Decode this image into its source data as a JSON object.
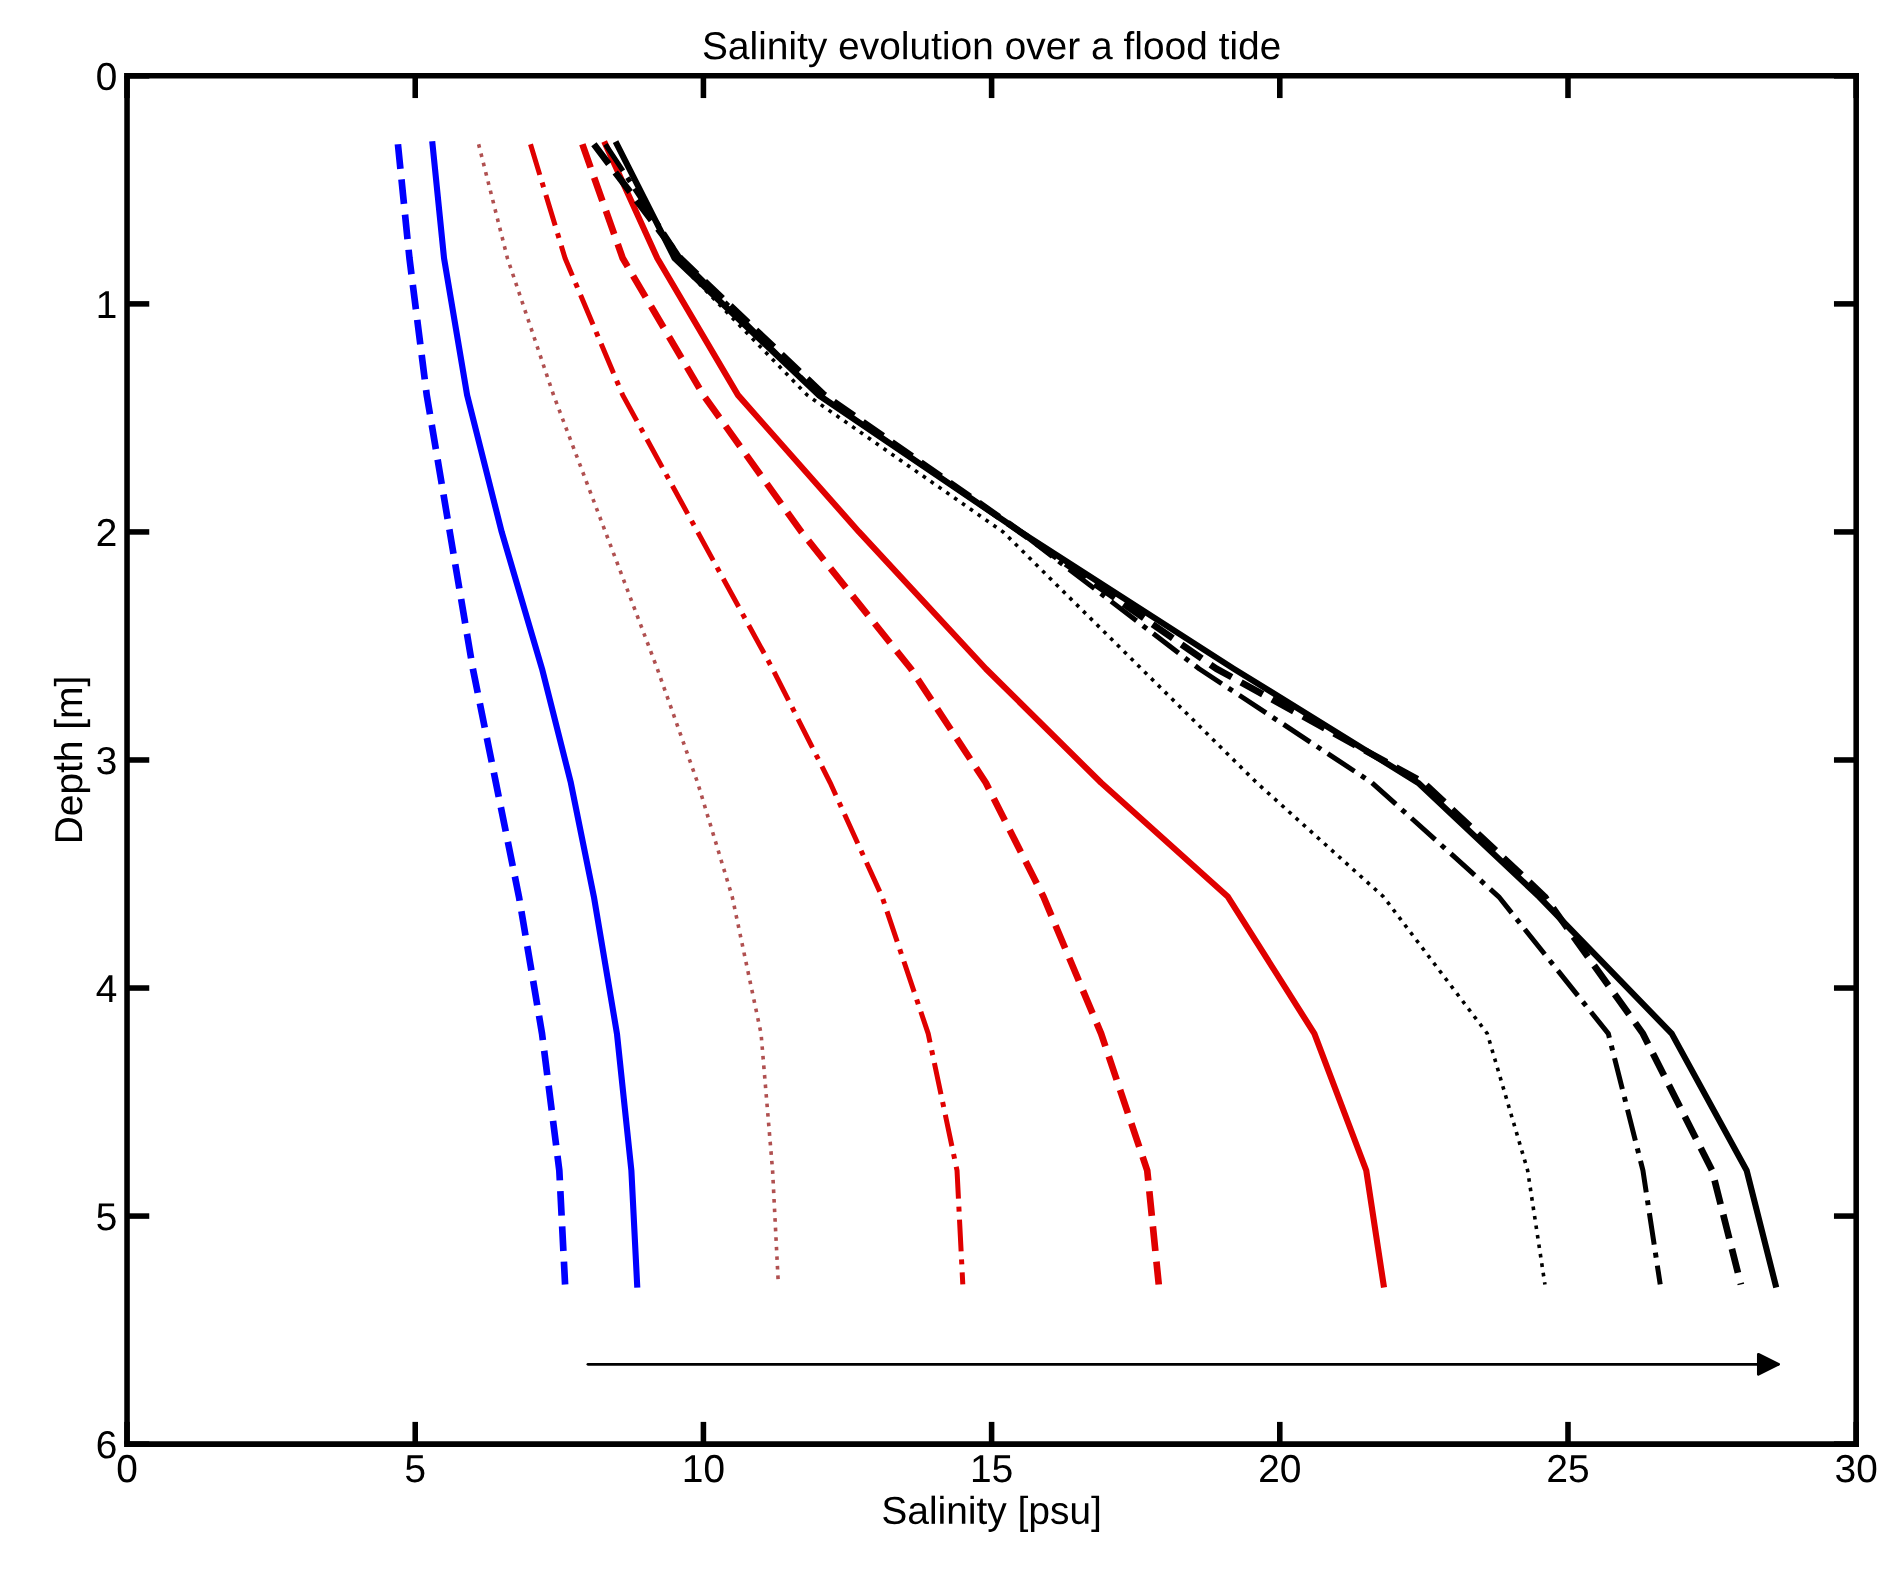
{
  "chart_data": {
    "type": "line",
    "title": "Salinity evolution over a flood tide",
    "xlabel": "Salinity [psu]",
    "ylabel": "Depth [m]",
    "xlim": [
      0,
      30
    ],
    "xticks": [
      0,
      5,
      10,
      15,
      20,
      25,
      30
    ],
    "ylim": [
      6,
      0
    ],
    "yticks": [
      0,
      1,
      2,
      3,
      4,
      5,
      6
    ],
    "grid": false,
    "legend": false,
    "marker": "none",
    "series": [
      {
        "color": "#0000ff",
        "line_style": "dashed",
        "x": [
          4.7,
          4.9,
          5.2,
          5.6,
          6.0,
          6.4,
          6.8,
          7.2,
          7.5,
          7.6
        ],
        "values": [
          0.3,
          0.8,
          1.4,
          2.0,
          2.6,
          3.1,
          3.6,
          4.2,
          4.8,
          5.3
        ]
      },
      {
        "color": "#0000ff",
        "line_style": "solid",
        "x": [
          5.3,
          5.5,
          5.9,
          6.5,
          7.2,
          7.7,
          8.1,
          8.5,
          8.75,
          8.85
        ],
        "values": [
          0.3,
          0.8,
          1.4,
          2.0,
          2.6,
          3.1,
          3.6,
          4.2,
          4.8,
          5.3
        ]
      },
      {
        "color": "#b05050",
        "line_style": "dotted",
        "x": [
          6.1,
          6.6,
          7.4,
          8.3,
          9.2,
          9.9,
          10.5,
          11.0,
          11.2,
          11.3
        ],
        "values": [
          0.3,
          0.8,
          1.4,
          2.0,
          2.6,
          3.1,
          3.6,
          4.2,
          4.8,
          5.3
        ]
      },
      {
        "color": "#e00000",
        "line_style": "dashdot",
        "x": [
          7.0,
          7.6,
          8.6,
          9.9,
          11.2,
          12.2,
          13.1,
          13.9,
          14.4,
          14.5
        ],
        "values": [
          0.3,
          0.8,
          1.4,
          2.0,
          2.6,
          3.1,
          3.6,
          4.2,
          4.8,
          5.3
        ]
      },
      {
        "color": "#e00000",
        "line_style": "dashed",
        "x": [
          7.9,
          8.6,
          10.0,
          11.7,
          13.6,
          14.9,
          15.9,
          16.9,
          17.7,
          17.9
        ],
        "values": [
          0.3,
          0.8,
          1.4,
          2.0,
          2.6,
          3.1,
          3.6,
          4.2,
          4.8,
          5.3
        ]
      },
      {
        "color": "#e00000",
        "line_style": "solid",
        "x": [
          8.3,
          9.2,
          10.6,
          12.7,
          14.9,
          16.9,
          19.1,
          20.6,
          21.5,
          21.8
        ],
        "values": [
          0.3,
          0.8,
          1.4,
          2.0,
          2.6,
          3.1,
          3.6,
          4.2,
          4.8,
          5.3
        ]
      },
      {
        "color": "#000000",
        "line_style": "dotted",
        "x": [
          8.5,
          9.5,
          11.8,
          15.2,
          17.6,
          19.6,
          21.8,
          23.6,
          24.3,
          24.6
        ],
        "values": [
          0.3,
          0.8,
          1.4,
          2.0,
          2.6,
          3.1,
          3.6,
          4.2,
          4.8,
          5.3
        ]
      },
      {
        "color": "#000000",
        "line_style": "dashdot",
        "x": [
          8.3,
          9.6,
          12.0,
          15.5,
          18.6,
          21.6,
          23.8,
          25.7,
          26.3,
          26.6
        ],
        "values": [
          0.3,
          0.8,
          1.4,
          2.0,
          2.6,
          3.1,
          3.6,
          4.2,
          4.8,
          5.3
        ]
      },
      {
        "color": "#000000",
        "line_style": "dashed",
        "x": [
          8.1,
          9.6,
          12.1,
          15.5,
          18.9,
          22.5,
          24.6,
          26.3,
          27.5,
          28.0
        ],
        "values": [
          0.3,
          0.8,
          1.4,
          2.0,
          2.6,
          3.1,
          3.6,
          4.2,
          4.8,
          5.3
        ]
      },
      {
        "color": "#000000",
        "line_style": "solid",
        "x": [
          8.5,
          9.5,
          12.0,
          15.5,
          19.2,
          22.4,
          24.5,
          26.8,
          28.1,
          28.6
        ],
        "values": [
          0.3,
          0.8,
          1.4,
          2.0,
          2.6,
          3.1,
          3.6,
          4.2,
          4.8,
          5.3
        ]
      }
    ]
  }
}
